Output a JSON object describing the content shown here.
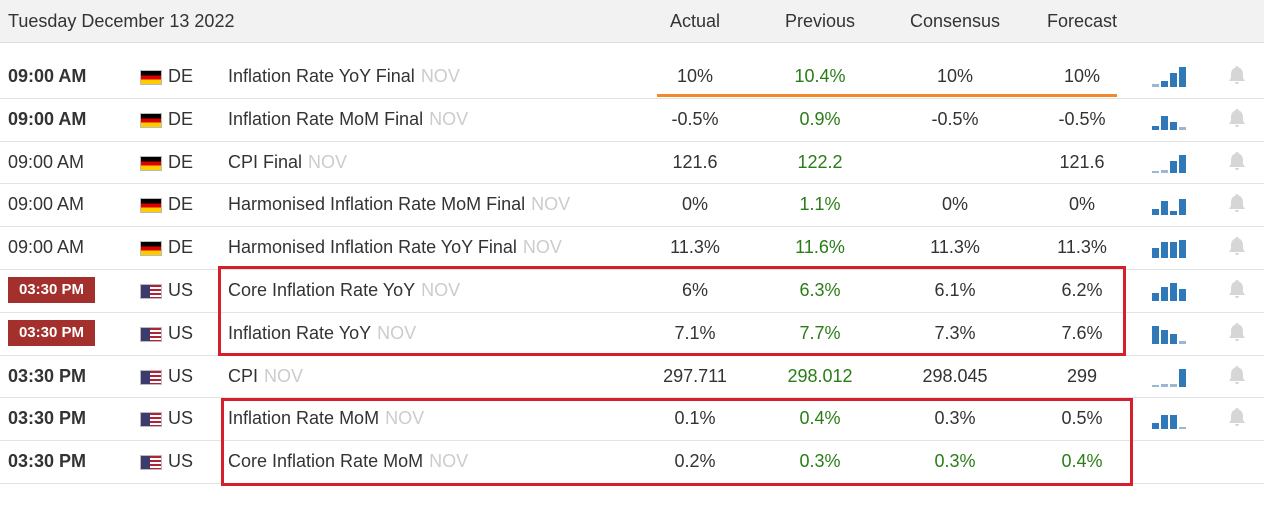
{
  "header": {
    "date": "Tuesday December 13 2022",
    "columns": [
      "Actual",
      "Previous",
      "Consensus",
      "Forecast"
    ]
  },
  "rows": [
    {
      "time": "09:00 AM",
      "country": "DE",
      "event": "Inflation Rate YoY Final",
      "period": "NOV",
      "actual": "10%",
      "previous": "10.4%",
      "consensus": "10%",
      "forecast": "10%"
    },
    {
      "time": "09:00 AM",
      "country": "DE",
      "event": "Inflation Rate MoM Final",
      "period": "NOV",
      "actual": "-0.5%",
      "previous": "0.9%",
      "consensus": "-0.5%",
      "forecast": "-0.5%"
    },
    {
      "time": "09:00 AM",
      "country": "DE",
      "event": "CPI Final",
      "period": "NOV",
      "actual": "121.6",
      "previous": "122.2",
      "forecast": "121.6"
    },
    {
      "time": "09:00 AM",
      "country": "DE",
      "event": "Harmonised Inflation Rate MoM Final",
      "period": "NOV",
      "actual": "0%",
      "previous": "1.1%",
      "consensus": "0%",
      "forecast": "0%"
    },
    {
      "time": "09:00 AM",
      "country": "DE",
      "event": "Harmonised Inflation Rate YoY Final",
      "period": "NOV",
      "actual": "11.3%",
      "previous": "11.6%",
      "consensus": "11.3%",
      "forecast": "11.3%"
    },
    {
      "time": "03:30 PM",
      "country": "US",
      "event": "Core Inflation Rate YoY",
      "period": "NOV",
      "actual": "6%",
      "previous": "6.3%",
      "consensus": "6.1%",
      "forecast": "6.2%"
    },
    {
      "time": "03:30 PM",
      "country": "US",
      "event": "Inflation Rate YoY",
      "period": "NOV",
      "actual": "7.1%",
      "previous": "7.7%",
      "consensus": "7.3%",
      "forecast": "7.6%"
    },
    {
      "time": "03:30 PM",
      "country": "US",
      "event": "CPI",
      "period": "NOV",
      "actual": "297.711",
      "previous": "298.012",
      "consensus": "298.045",
      "forecast": "299"
    },
    {
      "time": "03:30 PM",
      "country": "US",
      "event": "Inflation Rate MoM",
      "period": "NOV",
      "actual": "0.1%",
      "previous": "0.4%",
      "consensus": "0.3%",
      "forecast": "0.5%"
    },
    {
      "time": "03:30 PM",
      "country": "US",
      "event": "Core Inflation Rate MoM",
      "period": "NOV",
      "actual": "0.2%",
      "previous": "0.3%",
      "consensus": "0.3%",
      "forecast": "0.4%"
    }
  ]
}
